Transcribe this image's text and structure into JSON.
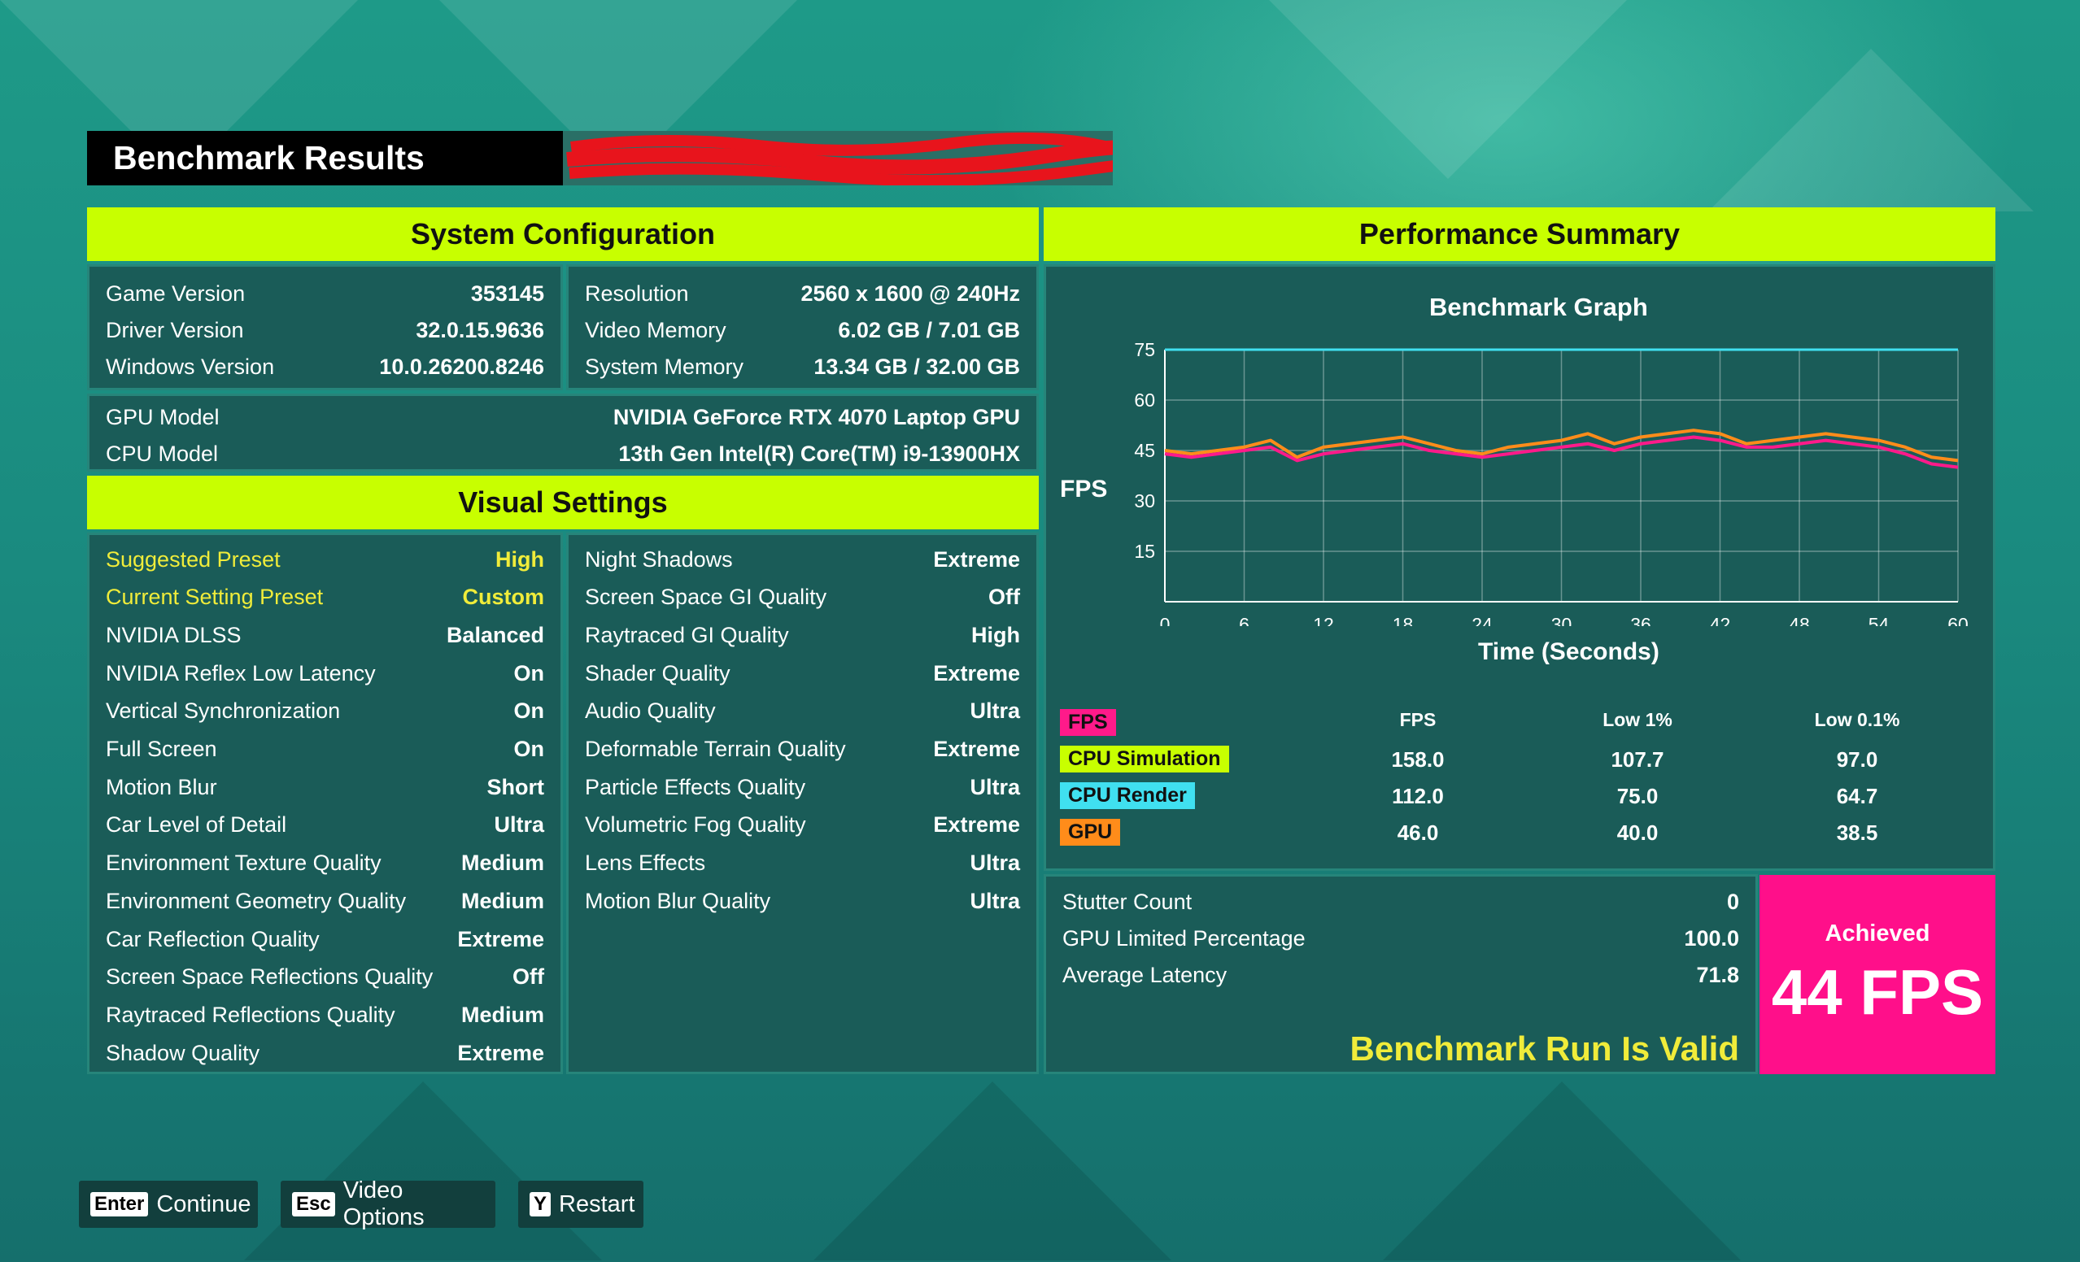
{
  "header": {
    "title": "Benchmark Results"
  },
  "system_configuration": {
    "title": "System Configuration",
    "left": [
      {
        "label": "Game Version",
        "value": "353145"
      },
      {
        "label": "Driver Version",
        "value": "32.0.15.9636"
      },
      {
        "label": "Windows Version",
        "value": "10.0.26200.8246"
      }
    ],
    "right": [
      {
        "label": "Resolution",
        "value": "2560 x 1600 @ 240Hz"
      },
      {
        "label": "Video Memory",
        "value": "6.02 GB / 7.01 GB"
      },
      {
        "label": "System Memory",
        "value": "13.34 GB / 32.00 GB"
      }
    ],
    "hardware": [
      {
        "label": "GPU Model",
        "value": "NVIDIA GeForce RTX 4070 Laptop GPU"
      },
      {
        "label": "CPU Model",
        "value": "13th Gen Intel(R) Core(TM) i9-13900HX"
      }
    ]
  },
  "visual_settings": {
    "title": "Visual Settings",
    "left": [
      {
        "label": "Suggested Preset",
        "value": "High",
        "highlight": true
      },
      {
        "label": "Current Setting Preset",
        "value": "Custom",
        "highlight": true
      },
      {
        "label": "NVIDIA DLSS",
        "value": "Balanced"
      },
      {
        "label": "NVIDIA Reflex Low Latency",
        "value": "On"
      },
      {
        "label": "Vertical Synchronization",
        "value": "On"
      },
      {
        "label": "Full Screen",
        "value": "On"
      },
      {
        "label": "Motion Blur",
        "value": "Short"
      },
      {
        "label": "Car Level of Detail",
        "value": "Ultra"
      },
      {
        "label": "Environment Texture Quality",
        "value": "Medium"
      },
      {
        "label": "Environment Geometry Quality",
        "value": "Medium"
      },
      {
        "label": "Car Reflection Quality",
        "value": "Extreme"
      },
      {
        "label": "Screen Space Reflections Quality",
        "value": "Off"
      },
      {
        "label": "Raytraced Reflections Quality",
        "value": "Medium"
      },
      {
        "label": "Shadow Quality",
        "value": "Extreme"
      }
    ],
    "right": [
      {
        "label": "Night Shadows",
        "value": "Extreme"
      },
      {
        "label": "Screen Space GI Quality",
        "value": "Off"
      },
      {
        "label": "Raytraced GI Quality",
        "value": "High"
      },
      {
        "label": "Shader Quality",
        "value": "Extreme"
      },
      {
        "label": "Audio Quality",
        "value": "Ultra"
      },
      {
        "label": "Deformable Terrain Quality",
        "value": "Extreme"
      },
      {
        "label": "Particle Effects Quality",
        "value": "Ultra"
      },
      {
        "label": "Volumetric Fog Quality",
        "value": "Extreme"
      },
      {
        "label": "Lens Effects",
        "value": "Ultra"
      },
      {
        "label": "Motion Blur Quality",
        "value": "Ultra"
      }
    ]
  },
  "performance_summary": {
    "title": "Performance Summary",
    "graph_title": "Benchmark Graph",
    "y_label": "FPS",
    "x_label": "Time (Seconds)"
  },
  "chart_data": {
    "type": "line",
    "title": "Benchmark Graph",
    "xlabel": "Time (Seconds)",
    "ylabel": "FPS",
    "xlim": [
      0,
      60
    ],
    "ylim": [
      0,
      75
    ],
    "x_ticks": [
      0,
      6,
      12,
      18,
      24,
      30,
      36,
      42,
      48,
      54,
      60
    ],
    "y_ticks": [
      15,
      30,
      45,
      60,
      75
    ],
    "grid": true,
    "x": [
      0,
      2,
      4,
      6,
      8,
      10,
      12,
      14,
      16,
      18,
      20,
      22,
      24,
      26,
      28,
      30,
      32,
      34,
      36,
      38,
      40,
      42,
      44,
      46,
      48,
      50,
      52,
      54,
      56,
      58,
      60
    ],
    "series": [
      {
        "name": "CPU Render",
        "color": "#40e0f0",
        "values": [
          75,
          75,
          75,
          75,
          75,
          75,
          75,
          75,
          75,
          75,
          75,
          75,
          75,
          75,
          75,
          75,
          75,
          75,
          75,
          75,
          75,
          75,
          75,
          75,
          75,
          75,
          75,
          75,
          75,
          75,
          75
        ]
      },
      {
        "name": "GPU",
        "color": "#ff8c1a",
        "values": [
          45,
          44,
          45,
          46,
          48,
          43,
          46,
          47,
          48,
          49,
          47,
          45,
          44,
          46,
          47,
          48,
          50,
          47,
          49,
          50,
          51,
          50,
          47,
          48,
          49,
          50,
          49,
          48,
          46,
          43,
          42
        ]
      },
      {
        "name": "FPS",
        "color": "#ff1a8a",
        "values": [
          44,
          43,
          44,
          45,
          46,
          42,
          44,
          45,
          46,
          47,
          45,
          44,
          43,
          44,
          45,
          46,
          47,
          45,
          47,
          48,
          49,
          48,
          46,
          46,
          47,
          48,
          47,
          46,
          44,
          41,
          40
        ]
      }
    ]
  },
  "stats": {
    "headers": [
      "FPS",
      "Low 1%",
      "Low 0.1%"
    ],
    "rows": [
      {
        "name": "FPS",
        "color": "#ff1a8a",
        "values": [
          "",
          "",
          ""
        ]
      },
      {
        "name": "CPU Simulation",
        "color": "#c8ff00",
        "values": [
          "158.0",
          "107.7",
          "97.0"
        ]
      },
      {
        "name": "CPU Render",
        "color": "#40e0f0",
        "values": [
          "112.0",
          "75.0",
          "64.7"
        ]
      },
      {
        "name": "GPU",
        "color": "#ff8c1a",
        "values": [
          "46.0",
          "40.0",
          "38.5"
        ]
      }
    ]
  },
  "run_stats": [
    {
      "label": "Stutter Count",
      "value": "0"
    },
    {
      "label": "GPU Limited Percentage",
      "value": "100.0"
    },
    {
      "label": "Average Latency",
      "value": "71.8"
    }
  ],
  "validity": "Benchmark Run Is Valid",
  "achieved": {
    "label": "Achieved",
    "value": "44 FPS"
  },
  "footer": {
    "buttons": [
      {
        "key": "Enter",
        "label": "Continue"
      },
      {
        "key": "Esc",
        "label": "Video Options"
      },
      {
        "key": "Y",
        "label": "Restart"
      }
    ]
  },
  "colors": {
    "accent": "#c8ff00",
    "achieved": "#ff0f8a",
    "valid": "#f0ec3a"
  }
}
